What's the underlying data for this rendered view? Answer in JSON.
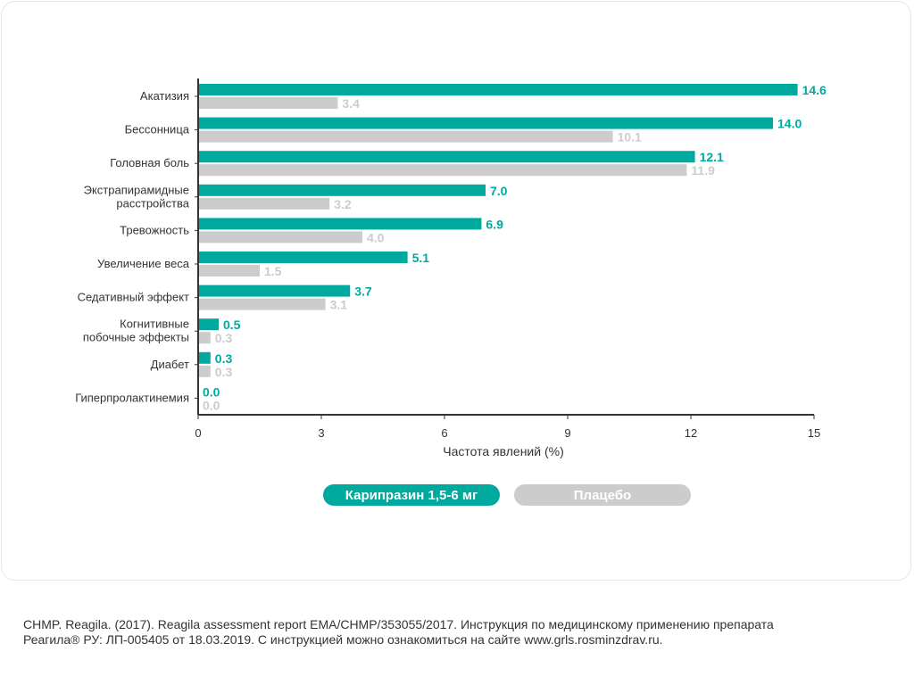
{
  "chart_data": {
    "type": "bar",
    "orientation": "horizontal",
    "categories": [
      [
        "Акатизия"
      ],
      [
        "Бессонница"
      ],
      [
        "Головная боль"
      ],
      [
        "Экстрапирамидные",
        "расстройства"
      ],
      [
        "Тревожность"
      ],
      [
        "Увеличение веса"
      ],
      [
        "Седативный эффект"
      ],
      [
        "Когнитивные",
        "побочные эффекты"
      ],
      [
        "Диабет"
      ],
      [
        "Гиперпролактинемия"
      ]
    ],
    "series": [
      {
        "name": "Карипразин 1,5-6 мг",
        "color": "#00a99d",
        "values": [
          14.6,
          14.0,
          12.1,
          7.0,
          6.9,
          5.1,
          3.7,
          0.5,
          0.3,
          0.0
        ],
        "labels": [
          "14.6",
          "14.0",
          "12.1",
          "7.0",
          "6.9",
          "5.1",
          "3.7",
          "0.5",
          "0.3",
          "0.0"
        ]
      },
      {
        "name": "Плацебо",
        "color": "#cccccc",
        "values": [
          3.4,
          10.1,
          11.9,
          3.2,
          4.0,
          1.5,
          3.1,
          0.3,
          0.3,
          0.0
        ],
        "labels": [
          "3.4",
          "10.1",
          "11.9",
          "3.2",
          "4.0",
          "1.5",
          "3.1",
          "0.3",
          "0.3",
          "0.0"
        ]
      }
    ],
    "xlabel": "Частота явлений (%)",
    "xlim": [
      0,
      15
    ],
    "xticks": [
      "0",
      "3",
      "6",
      "9",
      "12",
      "15"
    ],
    "grid": false,
    "legend_position": "bottom"
  },
  "footnote": [
    "CHMP. Reagila. (2017). Reagila assessment report EMA/CHMP/353055/2017. Инструкция по медицинскому применению препарата",
    "Реагила® РУ: ЛП-005405 от 18.03.2019. С инструкцией можно ознакомиться на сайте www.grls.rosminzdrav.ru."
  ]
}
